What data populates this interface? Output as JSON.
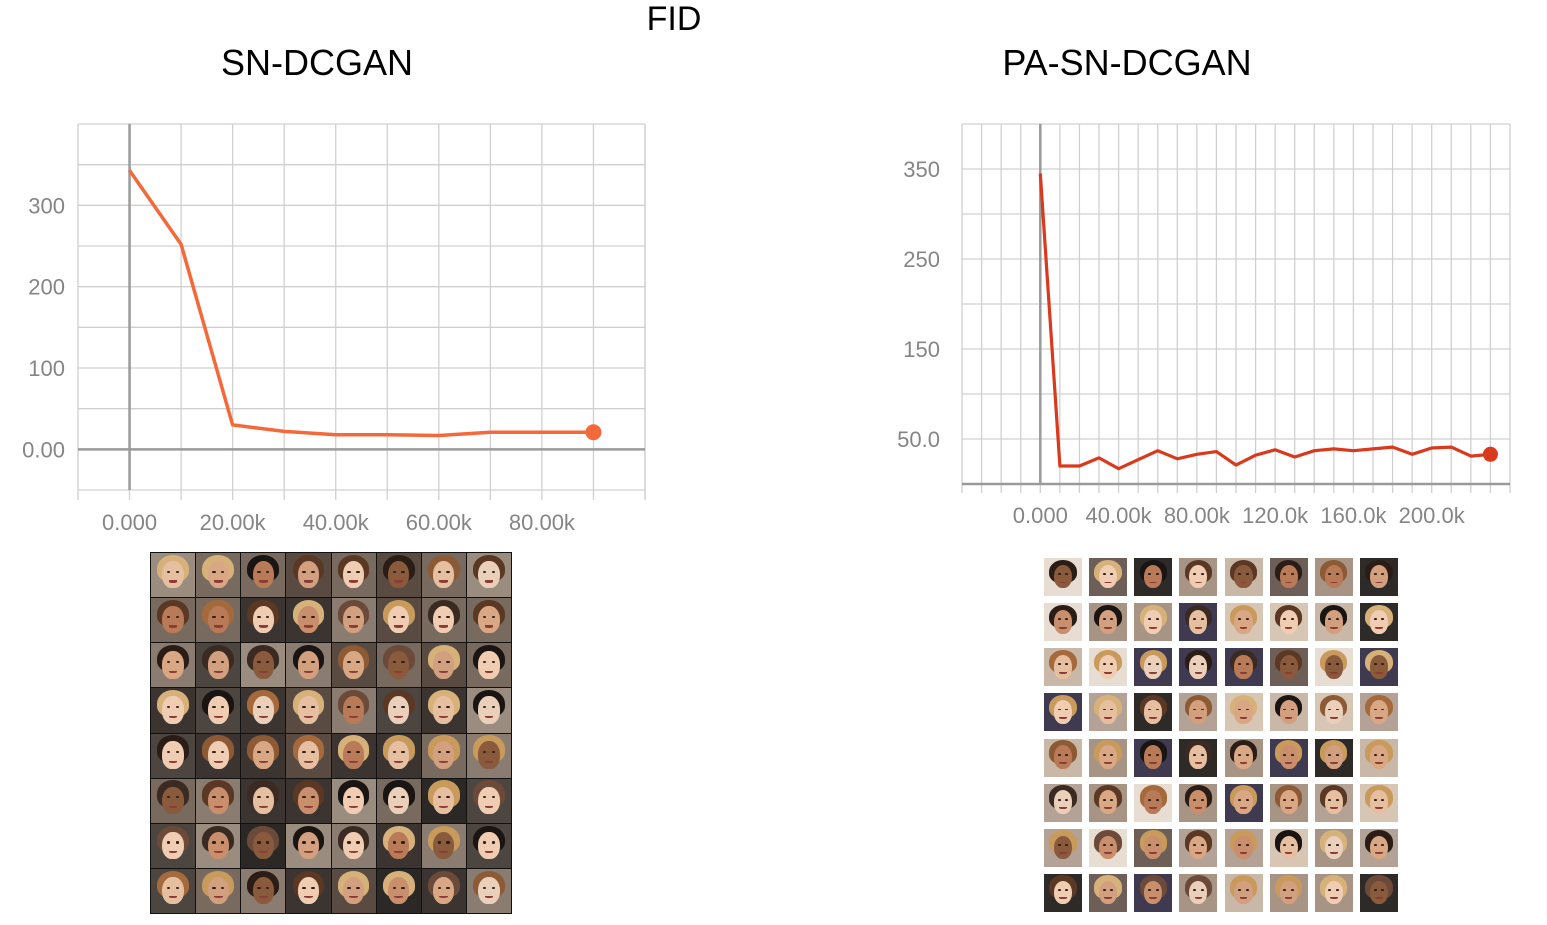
{
  "main_title": "FID",
  "chart_data": [
    {
      "type": "line",
      "title": "SN-DCGAN",
      "x": [
        0,
        10000,
        20000,
        30000,
        40000,
        50000,
        60000,
        70000,
        80000,
        90000
      ],
      "series": [
        {
          "values": [
            343,
            252,
            30,
            22,
            18,
            18,
            17,
            21,
            21,
            21
          ],
          "color": "#f4683a"
        }
      ],
      "ytick_values": [
        0,
        100,
        200,
        300
      ],
      "ytick_labels": [
        "0.00",
        "100",
        "200",
        "300"
      ],
      "xtick_values": [
        0,
        20000,
        40000,
        60000,
        80000
      ],
      "xtick_labels": [
        "0.000",
        "20.00k",
        "40.00k",
        "60.00k",
        "80.00k"
      ],
      "xlim": [
        -10000,
        100000
      ],
      "ylim": [
        -50,
        400
      ],
      "grid": true,
      "legend": "none"
    },
    {
      "type": "line",
      "title": "PA-SN-DCGAN",
      "x": [
        0,
        10000,
        20000,
        30000,
        40000,
        50000,
        60000,
        70000,
        80000,
        90000,
        100000,
        110000,
        120000,
        130000,
        140000,
        150000,
        160000,
        170000,
        180000,
        190000,
        200000,
        210000,
        220000,
        230000
      ],
      "series": [
        {
          "values": [
            345,
            20,
            20,
            29,
            17,
            27,
            37,
            28,
            33,
            36,
            21,
            32,
            38,
            30,
            37,
            39,
            37,
            39,
            41,
            33,
            40,
            41,
            31,
            33
          ],
          "color": "#d9391c"
        }
      ],
      "ytick_values": [
        50,
        150,
        250,
        350
      ],
      "ytick_labels": [
        "50.0",
        "150",
        "250",
        "350"
      ],
      "xtick_values": [
        0,
        40000,
        80000,
        120000,
        160000,
        200000
      ],
      "xtick_labels": [
        "0.000",
        "40.00k",
        "80.00k",
        "120.0k",
        "160.0k",
        "200.0k"
      ],
      "xlim": [
        -40000,
        240000
      ],
      "ylim": [
        0,
        400
      ],
      "grid": true,
      "legend": "none"
    }
  ]
}
